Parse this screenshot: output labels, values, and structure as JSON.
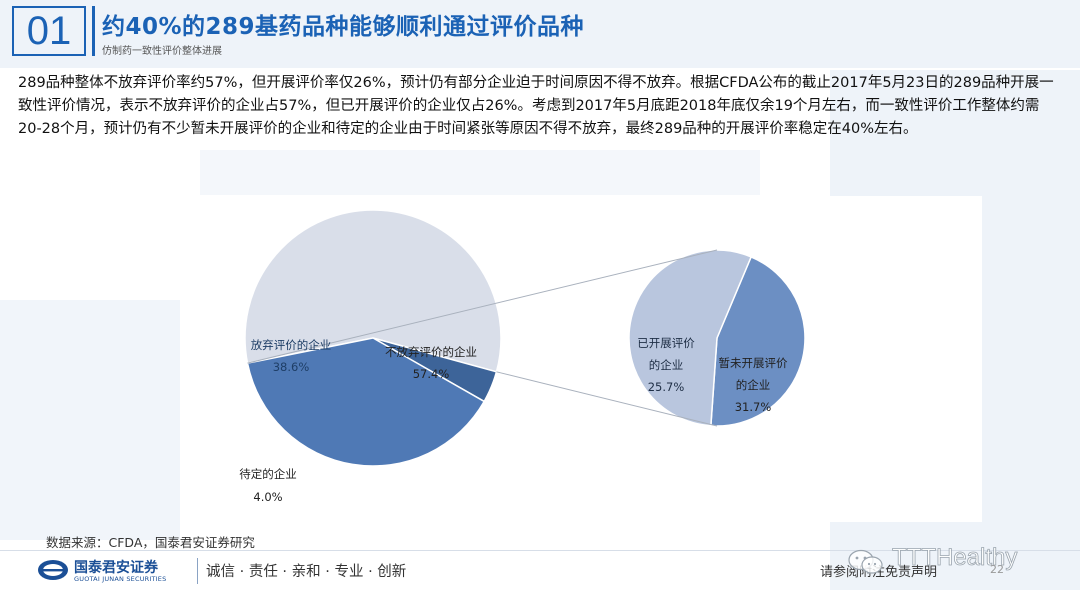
{
  "header": {
    "slide_number": "01",
    "title": "约40%的289基药品种能够顺利通过评价品种",
    "subtitle": "仿制药一致性评价整体进展"
  },
  "body_text": "289品种整体不放弃评价率约57%，但开展评价率仅26%，预计仍有部分企业迫于时间原因不得不放弃。根据CFDA公布的截止2017年5月23日的289品种开展一致性评价情况，表示不放弃评价的企业占57%，但已开展评价的企业仅占26%。考虑到2017年5月底距2018年底仅余19个月左右，而一致性评价工作整体约需20-28个月，预计仍有不少暂未开展评价的企业和待定的企业由于时间紧张等原因不得不放弃，最终289品种的开展评价率稳定在40%左右。",
  "chart_data": {
    "type": "pie",
    "main_pie": {
      "slices": [
        {
          "label": "不放弃评价的企业",
          "value": 57.4,
          "value_label": "57.4%",
          "color": "#d9dee9"
        },
        {
          "label": "待定的企业",
          "value": 4.0,
          "value_label": "4.0%",
          "color": "#3d6499"
        },
        {
          "label": "放弃评价的企业",
          "value": 38.6,
          "value_label": "38.6%",
          "color": "#4f79b5"
        }
      ]
    },
    "breakdown_pie": {
      "parent": "不放弃评价的企业",
      "slices": [
        {
          "label": "已开展评价的企业",
          "value": 25.7,
          "value_label": "25.7%",
          "color": "#6c8fc3"
        },
        {
          "label": "暂未开展评价的企业",
          "value": 31.7,
          "value_label": "31.7%",
          "color": "#b9c6de"
        }
      ]
    }
  },
  "label_text": {
    "main_1_line1": "不放弃评价的企业",
    "main_1_value": "57.4%",
    "main_2_line1": "待定的企业",
    "main_2_value": "4.0%",
    "main_3_line1": "放弃评价的企业",
    "main_3_value": "38.6%",
    "sub_1_line1": "已开展评价",
    "sub_1_line2": "的企业",
    "sub_1_value": "25.7%",
    "sub_2_line1": "暂未开展评价",
    "sub_2_line2": "的企业",
    "sub_2_value": "31.7%"
  },
  "footer": {
    "source": "数据来源：CFDA，国泰君安证券研究",
    "company_name": "国泰君安证券",
    "company_name_en": "GUOTAI JUNAN SECURITIES",
    "motto": "诚信 · 责任 · 亲和 · 专业 · 创新",
    "disclaimer": "请参阅附注免责声明",
    "page_number": "22",
    "watermark": "TTTHealthy"
  },
  "colors": {
    "brand_blue": "#1b62b5",
    "main_large": "#d9dee9",
    "main_medium": "#4f79b5",
    "main_small": "#3d6499",
    "sub_done": "#6c8fc3",
    "sub_pending": "#b9c6de"
  }
}
